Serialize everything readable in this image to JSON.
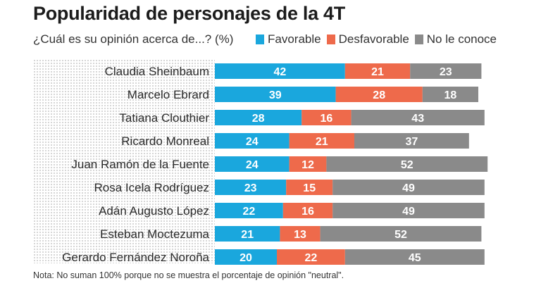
{
  "chart_data": {
    "type": "bar",
    "orientation": "horizontal",
    "stacked": true,
    "title": "Popularidad de personajes de la 4T",
    "subtitle": "¿Cuál es su opinión acerca de...? (%)",
    "categories": [
      "Claudia Sheinbaum",
      "Marcelo Ebrard",
      "Tatiana Clouthier",
      "Ricardo Monreal",
      "Juan Ramón de la Fuente",
      "Rosa Icela Rodríguez",
      "Adán Augusto López",
      "Esteban Moctezuma",
      "Gerardo Fernández Noroña"
    ],
    "series": [
      {
        "name": "Favorable",
        "color": "#1aa7dd",
        "values": [
          42,
          39,
          28,
          24,
          24,
          23,
          22,
          21,
          20
        ]
      },
      {
        "name": "Desfavorable",
        "color": "#ee6a4b",
        "values": [
          21,
          28,
          16,
          21,
          12,
          15,
          16,
          13,
          22
        ]
      },
      {
        "name": "No le conoce",
        "color": "#8a8a8a",
        "values": [
          23,
          18,
          43,
          37,
          52,
          49,
          49,
          52,
          45
        ]
      }
    ],
    "legend_position": "top",
    "note": "Nota: No suman 100% porque no se muestra el porcentaje de opinión \"neutral\"."
  }
}
